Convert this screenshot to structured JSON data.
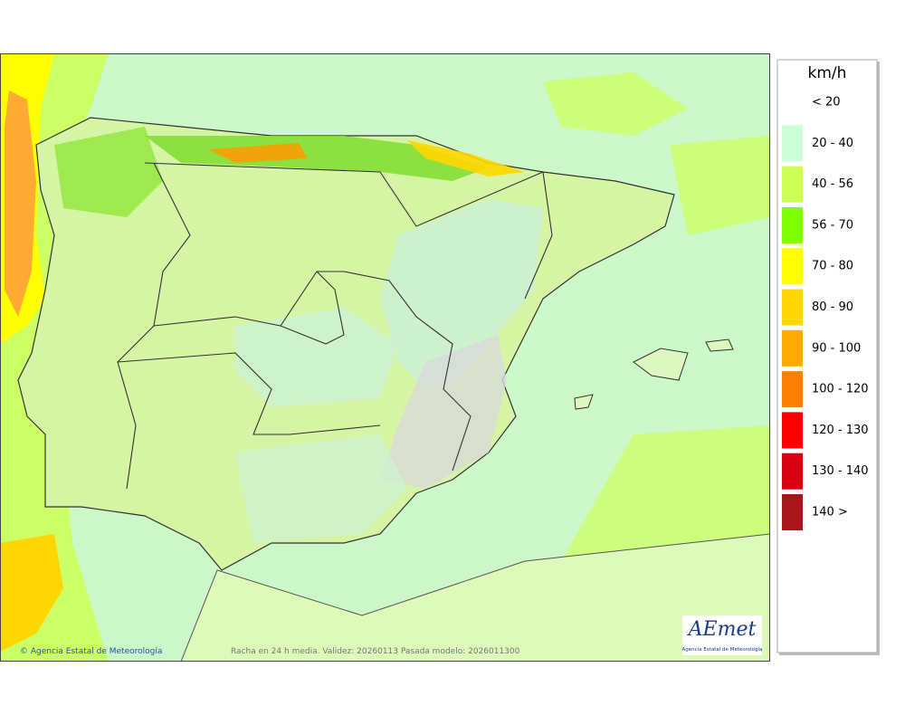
{
  "legend": {
    "title": "km/h",
    "items": [
      {
        "label": "< 20",
        "color": null
      },
      {
        "label": "20 - 40",
        "color": "#ccffd5"
      },
      {
        "label": "40 - 56",
        "color": "#ccff55"
      },
      {
        "label": "56 - 70",
        "color": "#7fff00"
      },
      {
        "label": "70 - 80",
        "color": "#ffff00"
      },
      {
        "label": "80 - 90",
        "color": "#ffd700"
      },
      {
        "label": "90 - 100",
        "color": "#ffaa00"
      },
      {
        "label": "100 - 120",
        "color": "#ff8000"
      },
      {
        "label": "120 - 130",
        "color": "#ff0000"
      },
      {
        "label": "130 - 140",
        "color": "#d80010"
      },
      {
        "label": "140 >",
        "color": "#a8151c"
      }
    ]
  },
  "footer": {
    "copyright": "© Agencia Estatal de Meteorología",
    "caption": "Racha en 24 h media. Validez: 20260113 Pasada modelo: 2026011300"
  },
  "logo": {
    "name": "AEmet",
    "subtitle": "Agencia Estatal de Meteorología"
  }
}
